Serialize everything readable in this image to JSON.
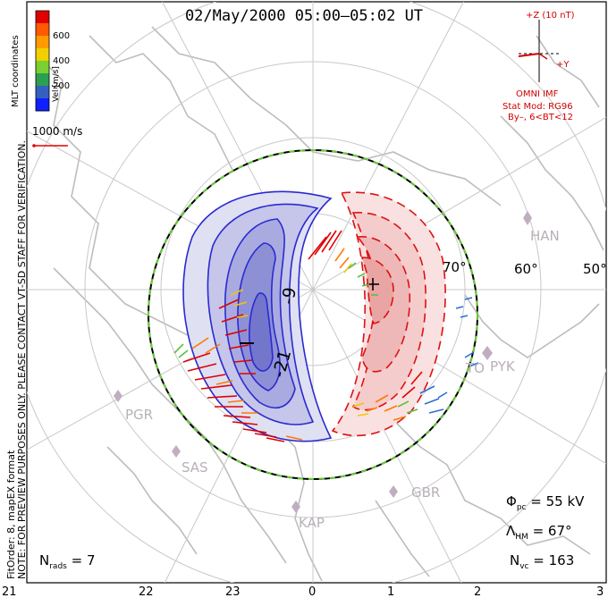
{
  "title": "02/May/2000 05:00–05:02 UT",
  "colorbar": {
    "label": "Vel [m/s]",
    "ticks": [
      "600",
      "400",
      "200"
    ],
    "colors": [
      "#e00000",
      "#ff5a00",
      "#ff9a00",
      "#f0d000",
      "#7ad030",
      "#2aa050",
      "#3560c0",
      "#1020ff"
    ]
  },
  "mlt_label": "MLT coordinates",
  "notice": "NOTE: FOR PREVIEW PURPOSES ONLY. PLEASE CONTACT VT-SD STAFF FOR VERIFICATION.",
  "fit_info": "FitOrder: 8, mapEX format",
  "scale_vector_label": "1000 m/s",
  "imf": {
    "z_label": "+Z (10 nT)",
    "y_label": "+Y",
    "source": "OMNI IMF",
    "model_line1": "Stat Mod: RG96",
    "model_line2": "By–, 6<BT<12"
  },
  "latitudes": [
    "70°",
    "60°",
    "50°"
  ],
  "contour_labels": [
    "-9",
    "-21"
  ],
  "radars": [
    "HAN",
    "PYK",
    "TO",
    "PGR",
    "SAS",
    "KAP",
    "GBR"
  ],
  "stats": {
    "phi_sym": "Φ",
    "phi_sub": "pc",
    "phi_val": "= 55 kV",
    "lam_sym": "Λ",
    "lam_sub": "HM",
    "lam_val": "= 67°",
    "nvc_sym": "N",
    "nvc_sub": "vc",
    "nvc_val": "= 163",
    "nrads_sym": "N",
    "nrads_sub": "rads",
    "nrads_val": "= 7"
  },
  "mlt_ticks": [
    "21",
    "22",
    "23",
    "0",
    "1",
    "2",
    "3"
  ],
  "convection": {
    "min_marker": "–",
    "max_marker": "+"
  }
}
